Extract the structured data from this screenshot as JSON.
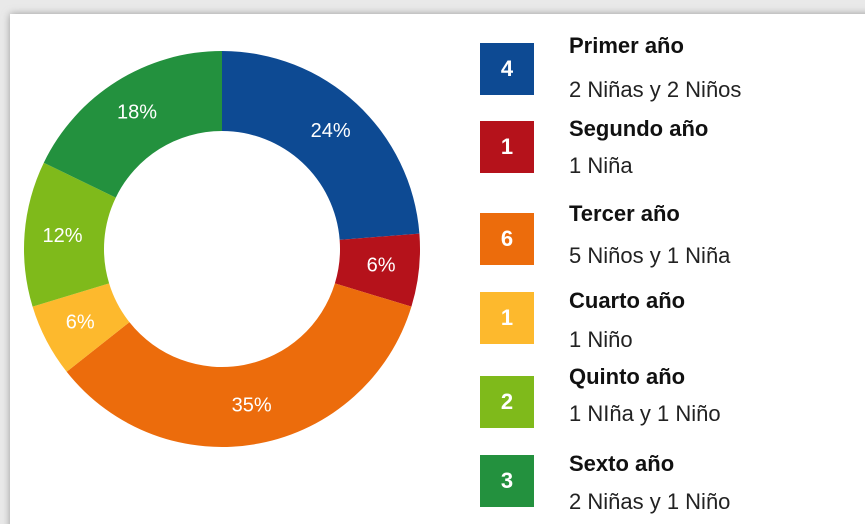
{
  "chart_data": {
    "type": "donut",
    "categories": [
      "Primer año",
      "Segundo año",
      "Tercer año",
      "Cuarto año",
      "Quinto año",
      "Sexto año"
    ],
    "values": [
      24,
      6,
      35,
      6,
      12,
      18
    ],
    "value_labels": [
      "24%",
      "6%",
      "35%",
      "6%",
      "12%",
      "18%"
    ],
    "counts": [
      4,
      1,
      6,
      1,
      2,
      3
    ],
    "descriptions": [
      "2 Niñas y 2 Niños",
      "1 Niña",
      "5 Niños y 1 Niña",
      "1 Niño",
      "1 NIña y 1 Niño",
      "2 Niñas y 1 Niño"
    ],
    "colors": [
      "#0d4a93",
      "#b5121b",
      "#ec6c0c",
      "#fdb92d",
      "#7fba1b",
      "#23913e"
    ]
  }
}
